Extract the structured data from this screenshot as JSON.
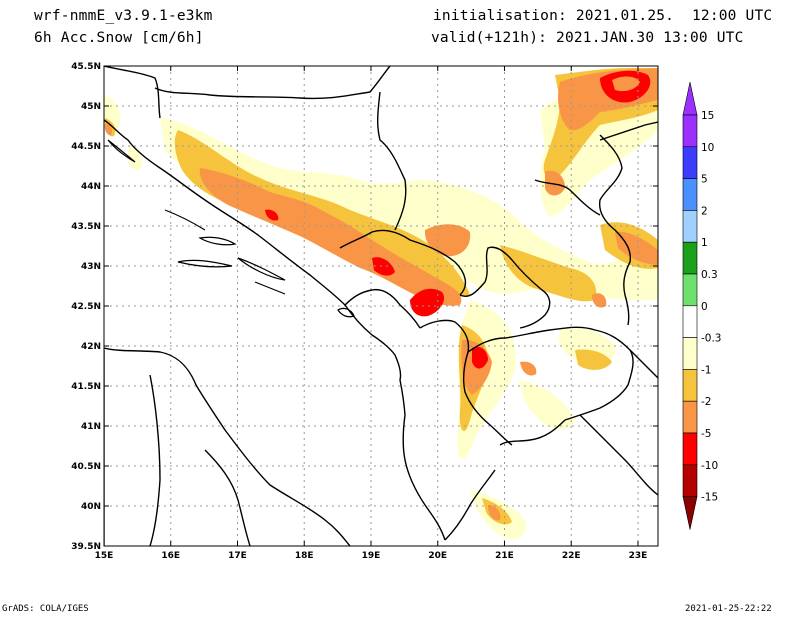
{
  "header": {
    "model": "wrf-nmmE_v3.9.1-e3km",
    "field": "6h Acc.Snow [cm/6h]",
    "initialisation": "initialisation: 2021.01.25.  12:00 UTC",
    "valid": "valid(+121h): 2021.JAN.30 13:00 UTC"
  },
  "footer": {
    "left": "GrADS: COLA/IGES",
    "right": "2021-01-25-22:22"
  },
  "map": {
    "lon_range": [
      15,
      23.3
    ],
    "lat_range": [
      39.5,
      45.5
    ],
    "lon_ticks": [
      "15E",
      "16E",
      "17E",
      "18E",
      "19E",
      "20E",
      "21E",
      "22E",
      "23E"
    ],
    "lat_ticks": [
      "45.5N",
      "45N",
      "44.5N",
      "44N",
      "43.5N",
      "43N",
      "42.5N",
      "42N",
      "41.5N",
      "41N",
      "40.5N",
      "40N",
      "39.5N"
    ]
  },
  "colorbar": {
    "labels": [
      "15",
      "10",
      "5",
      "2",
      "1",
      "0.3",
      "0",
      "-0.3",
      "-1",
      "-2",
      "-5",
      "-10",
      "-15"
    ],
    "colors": [
      "#9b30ff",
      "#3c3cff",
      "#4a90ff",
      "#a0d0ff",
      "#1aa01a",
      "#6ee06e",
      "#ffffff",
      "#ffffcc",
      "#f6c33c",
      "#f89546",
      "#ff0000",
      "#b40000"
    ],
    "top_arrow_color": "#9b30ff",
    "bottom_arrow_color": "#8c0000"
  }
}
